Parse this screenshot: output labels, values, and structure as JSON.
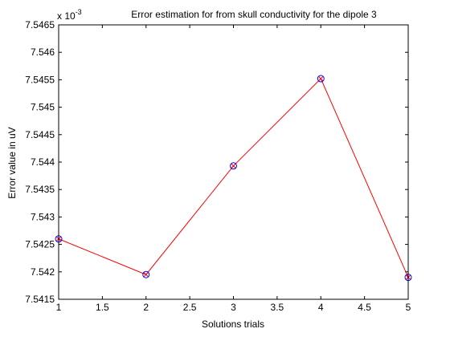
{
  "chart_data": {
    "type": "line",
    "title": "Error estimation for from skull conductivity for the dipole 3",
    "xlabel": "Solutions trials",
    "ylabel": "Error value in uV",
    "y_exponent_label": "x 10",
    "y_exponent_power": "-3",
    "xlim": [
      1,
      5
    ],
    "ylim": [
      7.5415,
      7.5465
    ],
    "x_ticks": [
      "1",
      "1.5",
      "2",
      "2.5",
      "3",
      "3.5",
      "4",
      "4.5",
      "5"
    ],
    "y_ticks": [
      "7.5415",
      "7.542",
      "7.5425",
      "7.543",
      "7.5435",
      "7.544",
      "7.5445",
      "7.545",
      "7.5455",
      "7.546",
      "7.5465"
    ],
    "grid": false,
    "series": [
      {
        "x": [
          1,
          2,
          3,
          4,
          5
        ],
        "y": [
          7.5426,
          7.54195,
          7.54393,
          7.54552,
          7.5419
        ],
        "line_color": "#ff0000",
        "marker": "circle-x",
        "marker_color": "#0000ff",
        "marker_cross_color": "#ff0000"
      }
    ]
  }
}
